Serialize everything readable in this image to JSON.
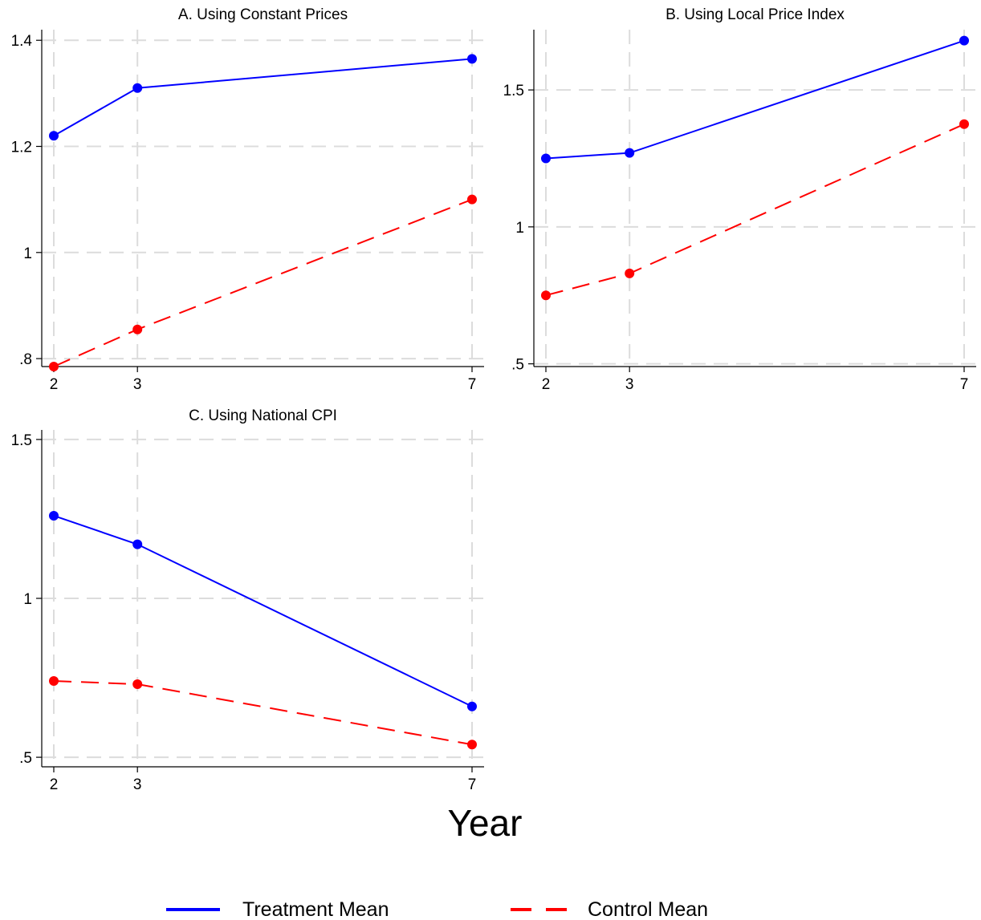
{
  "figure": {
    "xlabel": "Year",
    "legend": [
      {
        "label": "Treatment Mean",
        "color": "#0000ff",
        "style": "solid"
      },
      {
        "label": "Control Mean",
        "color": "#ff0000",
        "style": "dashed"
      }
    ]
  },
  "chart_data": [
    {
      "type": "line",
      "title": "A. Using Constant Prices",
      "x": [
        2,
        3,
        7
      ],
      "xticks": [
        "2",
        "3",
        "7"
      ],
      "ylim": [
        0.785,
        1.42
      ],
      "yticks": [
        {
          "value": 0.8,
          "label": ".8"
        },
        {
          "value": 1.0,
          "label": "1"
        },
        {
          "value": 1.2,
          "label": "1.2"
        },
        {
          "value": 1.4,
          "label": "1.4"
        }
      ],
      "grid": true,
      "series": [
        {
          "name": "Treatment Mean",
          "color": "#0000ff",
          "style": "solid",
          "values": [
            1.22,
            1.31,
            1.365
          ]
        },
        {
          "name": "Control Mean",
          "color": "#ff0000",
          "style": "dashed",
          "values": [
            0.785,
            0.855,
            1.1
          ]
        }
      ]
    },
    {
      "type": "line",
      "title": "B. Using Local Price Index",
      "x": [
        2,
        3,
        7
      ],
      "xticks": [
        "2",
        "3",
        "7"
      ],
      "ylim": [
        0.49,
        1.72
      ],
      "yticks": [
        {
          "value": 0.5,
          "label": ".5"
        },
        {
          "value": 1.0,
          "label": "1"
        },
        {
          "value": 1.5,
          "label": "1.5"
        }
      ],
      "grid": true,
      "series": [
        {
          "name": "Treatment Mean",
          "color": "#0000ff",
          "style": "solid",
          "values": [
            1.25,
            1.27,
            1.68
          ]
        },
        {
          "name": "Control Mean",
          "color": "#ff0000",
          "style": "dashed",
          "values": [
            0.75,
            0.83,
            1.375
          ]
        }
      ]
    },
    {
      "type": "line",
      "title": "C. Using National CPI",
      "x": [
        2,
        3,
        7
      ],
      "xticks": [
        "2",
        "3",
        "7"
      ],
      "ylim": [
        0.47,
        1.53
      ],
      "yticks": [
        {
          "value": 0.5,
          "label": ".5"
        },
        {
          "value": 1.0,
          "label": "1"
        },
        {
          "value": 1.5,
          "label": "1.5"
        }
      ],
      "grid": true,
      "series": [
        {
          "name": "Treatment Mean",
          "color": "#0000ff",
          "style": "solid",
          "values": [
            1.26,
            1.17,
            0.66
          ]
        },
        {
          "name": "Control Mean",
          "color": "#ff0000",
          "style": "dashed",
          "values": [
            0.74,
            0.73,
            0.54
          ]
        }
      ]
    }
  ]
}
